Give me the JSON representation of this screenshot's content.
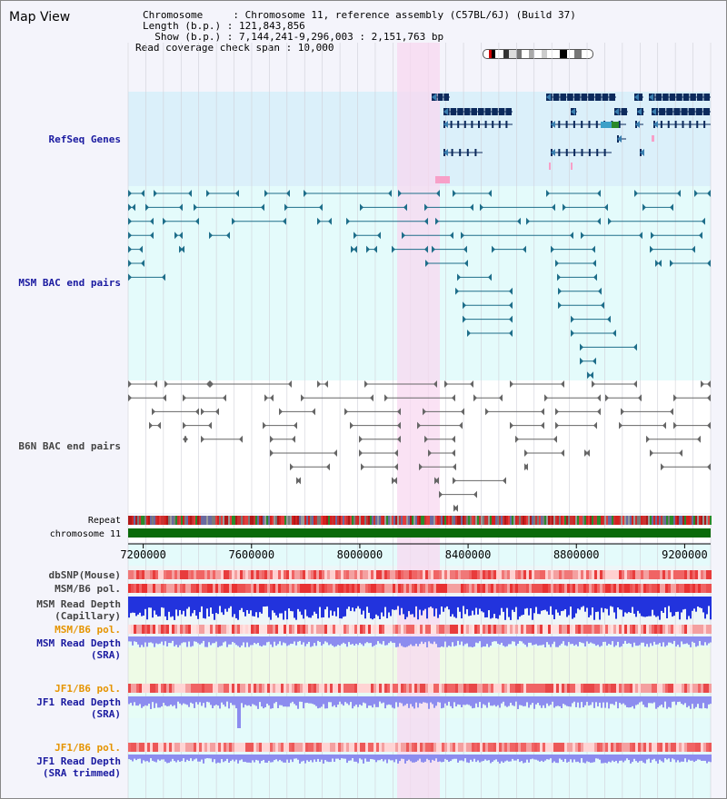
{
  "page": {
    "title": "Map View"
  },
  "header": {
    "line1": "Chromosome     : Chromosome 11, reference assembly (C57BL/6J) (Build 37)",
    "line2": "Length (b.p.) : 121,843,856",
    "line3": "  Show (b.p.) : 7,144,241-9,296,003 : 2,151,763 bp",
    "line4": "Read coverage check span : 10,000"
  },
  "tracks": {
    "refseq": "RefSeq Genes",
    "msm_bac": "MSM BAC end pairs",
    "b6n_bac": "B6N BAC end pairs",
    "repeat": "Repeat",
    "chromosome": "chromosome 11",
    "dbsnp": "dbSNP(Mouse)",
    "msm_b6_pol": "MSM/B6 pol.",
    "msm_depth_cap_1": "MSM Read Depth",
    "msm_depth_cap_2": "(Capillary)",
    "msm_b6_pol_2": "MSM/B6 pol.",
    "msm_depth_sra_1": "MSM Read Depth",
    "msm_depth_sra_2": "(SRA)",
    "jf1_b6_pol": "JF1/B6 pol.",
    "jf1_depth_sra_1": "JF1 Read Depth",
    "jf1_depth_sra_2": "(SRA)",
    "jf1_b6_pol_2": "JF1/B6 pol.",
    "jf1_depth_trim_1": "JF1 Read Depth",
    "jf1_depth_trim_2": "(SRA trimmed)"
  },
  "axis": {
    "ticks": [
      "7200000",
      "7600000",
      "8000000",
      "8400000",
      "8800000",
      "9200000"
    ],
    "range": [
      7144241,
      9296003
    ]
  },
  "colors": {
    "highlight": "#f8d8f0",
    "refseq_bg": "#dbf0fa",
    "msm_bg": "#e4fbfb",
    "gene": "#0c2a5c",
    "msm_pair": "#1e6e8a",
    "b6n_pair": "#666666",
    "chromosome": "#0a6a0a",
    "depth_capillary": "#2233dd",
    "depth_sra": "#8c8cef"
  }
}
